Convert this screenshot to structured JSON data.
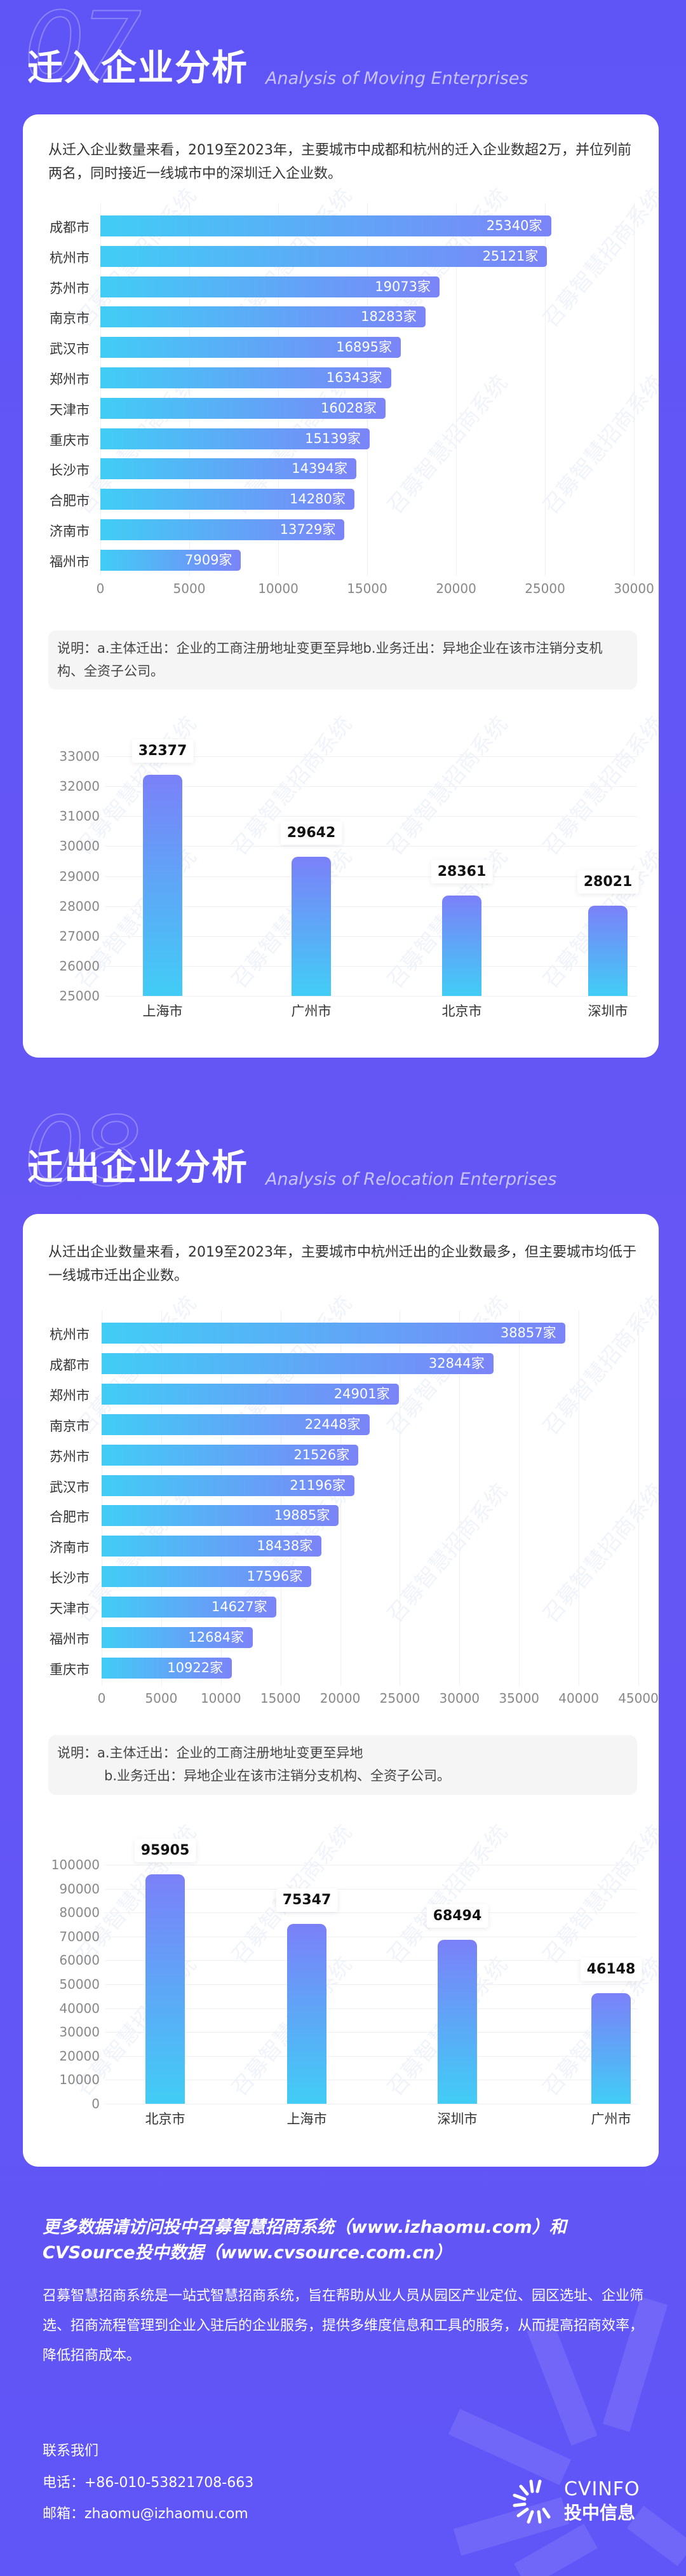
{
  "colors": {
    "background": "#6156f5",
    "bar_start": "#41cdf5",
    "bar_end": "#7b84f8",
    "title_en": "#c7c3ff"
  },
  "watermark": "召募智慧招商系统",
  "section07": {
    "number": "07",
    "title": "迁入企业分析",
    "title_en": "Analysis of Moving Enterprises",
    "paragraph": "从迁入企业数量来看，2019至2023年，主要城市中成都和杭州的迁入企业数超2万，并位列前两名，同时接近一线城市中的深圳迁入企业数。",
    "note": "说明：a.主体迁出：企业的工商注册地址变更至异地b.业务迁出：异地企业在该市注销分支机构、全资子公司。"
  },
  "section08": {
    "number": "08",
    "title": "迁出企业分析",
    "title_en": "Analysis of Relocation Enterprises",
    "paragraph": "从迁出企业数量来看，2019至2023年，主要城市中杭州迁出的企业数最多，但主要城市均低于一线城市迁出企业数。",
    "note_line1": "说明：a.主体迁出：企业的工商注册地址变更至异地",
    "note_line2": "b.业务迁出：异地企业在该市注销分支机构、全资子公司。"
  },
  "chart_data": [
    {
      "type": "bar",
      "orientation": "horizontal",
      "value_suffix": "家",
      "categories": [
        "成都市",
        "杭州市",
        "苏州市",
        "南京市",
        "武汉市",
        "郑州市",
        "天津市",
        "重庆市",
        "长沙市",
        "合肥市",
        "济南市",
        "福州市"
      ],
      "values": [
        25340,
        25121,
        19073,
        18283,
        16895,
        16343,
        16028,
        15139,
        14394,
        14280,
        13729,
        7909
      ],
      "xlim": [
        0,
        30000
      ],
      "ticks": [
        0,
        5000,
        10000,
        15000,
        20000,
        25000,
        30000
      ],
      "grid": true
    },
    {
      "type": "bar",
      "orientation": "vertical",
      "categories": [
        "上海市",
        "广州市",
        "北京市",
        "深圳市"
      ],
      "values": [
        32377,
        29642,
        28361,
        28021
      ],
      "ylim": [
        25000,
        33000
      ],
      "ticks": [
        25000,
        26000,
        27000,
        28000,
        29000,
        30000,
        31000,
        32000,
        33000
      ],
      "grid": true
    },
    {
      "type": "bar",
      "orientation": "horizontal",
      "value_suffix": "家",
      "categories": [
        "杭州市",
        "成都市",
        "郑州市",
        "南京市",
        "苏州市",
        "武汉市",
        "合肥市",
        "济南市",
        "长沙市",
        "天津市",
        "福州市",
        "重庆市"
      ],
      "values": [
        38857,
        32844,
        24901,
        22448,
        21526,
        21196,
        19885,
        18438,
        17596,
        14627,
        12684,
        10922
      ],
      "xlim": [
        0,
        45000
      ],
      "ticks": [
        0,
        5000,
        10000,
        15000,
        20000,
        25000,
        30000,
        35000,
        40000,
        45000
      ],
      "grid": true
    },
    {
      "type": "bar",
      "orientation": "vertical",
      "categories": [
        "北京市",
        "上海市",
        "深圳市",
        "广州市"
      ],
      "values": [
        95905,
        75347,
        68494,
        46148
      ],
      "ylim": [
        0,
        100000
      ],
      "ticks": [
        0,
        10000,
        20000,
        30000,
        40000,
        50000,
        60000,
        70000,
        80000,
        90000,
        100000
      ],
      "grid": true
    }
  ],
  "footer": {
    "headline_line1": "更多数据请访问投中召募智慧招商系统（www.izhaomu.com）和",
    "headline_line2": "CVSource投中数据（www.cvsource.com.cn）",
    "description": "召募智慧招商系统是一站式智慧招商系统，旨在帮助从业人员从园区产业定位、园区选址、企业筛选、招商流程管理到企业入驻后的企业服务，提供多维度信息和工具的服务，从而提高招商效率，降低招商成本。",
    "contact_title": "联系我们",
    "phone": "电话：+86-010-53821708-663",
    "email": "邮箱：zhaomu@izhaomu.com",
    "logo_en": "CVINFO",
    "logo_cn": "投中信息"
  }
}
